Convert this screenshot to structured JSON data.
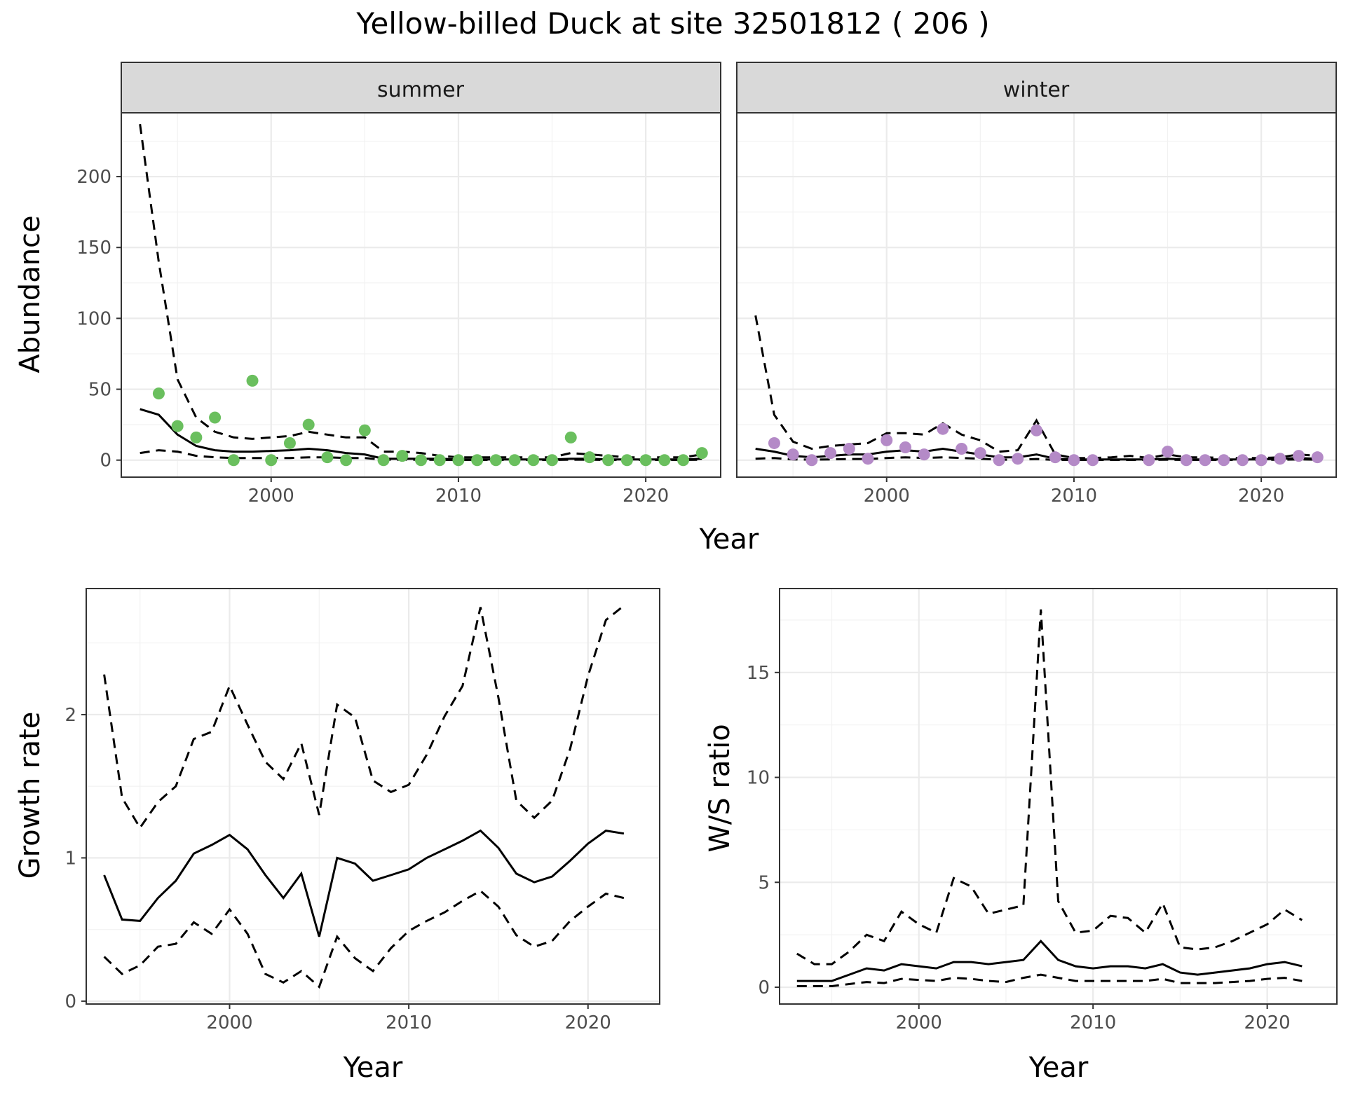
{
  "title": "Yellow-billed Duck at site 32501812 ( 206 )",
  "chart_data": [
    {
      "type": "scatter",
      "panel": "summer",
      "facet_label": "summer",
      "xlabel": "Year",
      "ylabel": "Abundance",
      "xlim": [
        1992,
        2024
      ],
      "ylim": [
        -12,
        245
      ],
      "xticks": [
        2000,
        2010,
        2020
      ],
      "yticks": [
        0,
        50,
        100,
        150,
        200
      ],
      "point_color": "#6abf5e",
      "points": {
        "x": [
          1994,
          1995,
          1996,
          1997,
          1998,
          1999,
          2000,
          2001,
          2002,
          2003,
          2004,
          2005,
          2006,
          2007,
          2008,
          2009,
          2010,
          2011,
          2012,
          2013,
          2014,
          2015,
          2016,
          2017,
          2018,
          2019,
          2020,
          2021,
          2022,
          2023
        ],
        "y": [
          47,
          24,
          16,
          30,
          0,
          56,
          0,
          12,
          25,
          2,
          0,
          21,
          0,
          3,
          0,
          0,
          0,
          0,
          0,
          0,
          0,
          0,
          16,
          2,
          0,
          0,
          0,
          0,
          0,
          5
        ]
      },
      "lines": [
        {
          "style": "solid",
          "x": [
            1993,
            1994,
            1995,
            1996,
            1997,
            1998,
            1999,
            2000,
            2001,
            2002,
            2003,
            2004,
            2005,
            2006,
            2007,
            2008,
            2009,
            2010,
            2011,
            2012,
            2013,
            2014,
            2015,
            2016,
            2017,
            2018,
            2019,
            2020,
            2021,
            2022,
            2023
          ],
          "y": [
            36,
            32,
            18,
            10,
            7,
            6,
            6,
            6.5,
            7,
            8,
            7,
            5,
            4,
            1,
            1,
            1,
            1,
            0.5,
            0.5,
            0.5,
            0.5,
            0.5,
            0.5,
            1,
            1,
            0.5,
            0.5,
            0.5,
            0.5,
            0.5,
            1
          ]
        },
        {
          "style": "dashed",
          "x": [
            1993,
            1994,
            1995,
            1996,
            1997,
            1998,
            1999,
            2000,
            2001,
            2002,
            2003,
            2004,
            2005,
            2006,
            2007,
            2008,
            2009,
            2010,
            2011,
            2012,
            2013,
            2014,
            2015,
            2016,
            2017,
            2018,
            2019,
            2020,
            2021,
            2022,
            2023
          ],
          "y": [
            237,
            140,
            57,
            30,
            20,
            16,
            15,
            16,
            17,
            20,
            18,
            16,
            16,
            6,
            6,
            5,
            3,
            2,
            2,
            2,
            2,
            2,
            2,
            5,
            4,
            3,
            2,
            2,
            2,
            2,
            4
          ]
        },
        {
          "style": "dashed",
          "x": [
            1993,
            1994,
            1995,
            1996,
            1997,
            1998,
            1999,
            2000,
            2001,
            2002,
            2003,
            2004,
            2005,
            2006,
            2007,
            2008,
            2009,
            2010,
            2011,
            2012,
            2013,
            2014,
            2015,
            2016,
            2017,
            2018,
            2019,
            2020,
            2021,
            2022,
            2023
          ],
          "y": [
            5,
            7,
            6,
            3,
            2,
            1.5,
            1.5,
            1.5,
            1.5,
            2,
            2,
            1.5,
            1.5,
            0.3,
            0.3,
            0.3,
            0.2,
            0.1,
            0.1,
            0.1,
            0.1,
            0.1,
            0.1,
            0.3,
            0.3,
            0.1,
            0.1,
            0.1,
            0.1,
            0.1,
            0.3
          ]
        }
      ]
    },
    {
      "type": "scatter",
      "panel": "winter",
      "facet_label": "winter",
      "xlabel": "Year",
      "ylabel": "Abundance",
      "xlim": [
        1992,
        2024
      ],
      "ylim": [
        -12,
        245
      ],
      "xticks": [
        2000,
        2010,
        2020
      ],
      "yticks": [
        0,
        50,
        100,
        150,
        200
      ],
      "point_color": "#b48ac7",
      "points": {
        "x": [
          1994,
          1995,
          1996,
          1997,
          1998,
          1999,
          2000,
          2001,
          2002,
          2003,
          2004,
          2005,
          2006,
          2007,
          2008,
          2009,
          2010,
          2011,
          2014,
          2015,
          2016,
          2017,
          2018,
          2019,
          2020,
          2021,
          2022,
          2023
        ],
        "y": [
          12,
          4,
          0,
          5,
          8,
          1,
          14,
          9,
          4,
          22,
          8,
          5,
          0,
          1,
          21,
          2,
          0,
          0,
          0,
          6,
          0,
          0,
          0,
          0,
          0,
          1,
          3,
          2
        ]
      },
      "lines": [
        {
          "style": "solid",
          "x": [
            1993,
            1994,
            1995,
            1996,
            1997,
            1998,
            1999,
            2000,
            2001,
            2002,
            2003,
            2004,
            2005,
            2006,
            2007,
            2008,
            2009,
            2010,
            2011,
            2012,
            2013,
            2014,
            2015,
            2016,
            2017,
            2018,
            2019,
            2020,
            2021,
            2022,
            2023
          ],
          "y": [
            8,
            6,
            3,
            2,
            3,
            4,
            4,
            6,
            7,
            6,
            8,
            6,
            4,
            2,
            2,
            4,
            1,
            0.5,
            0.5,
            0.5,
            0.5,
            0.5,
            1,
            0.5,
            0.5,
            0.5,
            0.5,
            0.5,
            1,
            1.5,
            1
          ]
        },
        {
          "style": "dashed",
          "x": [
            1993,
            1994,
            1995,
            1996,
            1997,
            1998,
            1999,
            2000,
            2001,
            2002,
            2003,
            2004,
            2005,
            2006,
            2007,
            2008,
            2009,
            2010,
            2011,
            2012,
            2013,
            2014,
            2015,
            2016,
            2017,
            2018,
            2019,
            2020,
            2021,
            2022,
            2023
          ],
          "y": [
            102,
            32,
            13,
            8,
            10,
            11,
            12,
            19,
            19,
            18,
            26,
            18,
            14,
            6,
            7,
            28,
            4,
            1.5,
            1.5,
            2,
            3,
            1.5,
            4,
            2,
            2,
            1.5,
            1.5,
            1.5,
            2,
            4,
            3
          ]
        },
        {
          "style": "dashed",
          "x": [
            1993,
            1994,
            1995,
            1996,
            1997,
            1998,
            1999,
            2000,
            2001,
            2002,
            2003,
            2004,
            2005,
            2006,
            2007,
            2008,
            2009,
            2010,
            2011,
            2012,
            2013,
            2014,
            2015,
            2016,
            2017,
            2018,
            2019,
            2020,
            2021,
            2022,
            2023
          ],
          "y": [
            1,
            1.5,
            0.5,
            0.3,
            0.5,
            0.8,
            0.8,
            1.5,
            2,
            1.5,
            2,
            1.5,
            1,
            0.3,
            0.3,
            0.8,
            0.1,
            0.1,
            0.1,
            0.1,
            0.1,
            0.1,
            0.3,
            0.1,
            0.1,
            0.1,
            0.1,
            0.1,
            0.3,
            0.5,
            0.3
          ]
        }
      ]
    },
    {
      "type": "line",
      "panel": "growth",
      "xlabel": "Year",
      "ylabel": "Growth rate",
      "xlim": [
        1992,
        2024
      ],
      "ylim": [
        -0.02,
        2.88
      ],
      "xticks": [
        2000,
        2010,
        2020
      ],
      "yticks": [
        0,
        1,
        2
      ],
      "lines": [
        {
          "style": "solid",
          "x": [
            1993,
            1994,
            1995,
            1996,
            1997,
            1998,
            1999,
            2000,
            2001,
            2002,
            2003,
            2004,
            2005,
            2006,
            2007,
            2008,
            2009,
            2010,
            2011,
            2012,
            2013,
            2014,
            2015,
            2016,
            2017,
            2018,
            2019,
            2020,
            2021,
            2022
          ],
          "y": [
            0.88,
            0.57,
            0.56,
            0.72,
            0.84,
            1.03,
            1.09,
            1.16,
            1.06,
            0.88,
            0.72,
            0.89,
            0.45,
            1.0,
            0.96,
            0.84,
            0.88,
            0.92,
            1.0,
            1.06,
            1.12,
            1.19,
            1.07,
            0.89,
            0.83,
            0.87,
            0.98,
            1.1,
            1.19,
            1.17
          ]
        },
        {
          "style": "dashed",
          "x": [
            1993,
            1994,
            1995,
            1996,
            1997,
            1998,
            1999,
            2000,
            2001,
            2002,
            2003,
            2004,
            2005,
            2006,
            2007,
            2008,
            2009,
            2010,
            2011,
            2012,
            2013,
            2014,
            2015,
            2016,
            2017,
            2018,
            2019,
            2020,
            2021,
            2022
          ],
          "y": [
            2.28,
            1.42,
            1.21,
            1.39,
            1.5,
            1.83,
            1.88,
            2.2,
            1.93,
            1.67,
            1.55,
            1.8,
            1.3,
            2.07,
            1.98,
            1.54,
            1.46,
            1.51,
            1.72,
            1.99,
            2.2,
            2.75,
            2.12,
            1.4,
            1.28,
            1.4,
            1.76,
            2.27,
            2.66,
            2.76
          ]
        },
        {
          "style": "dashed",
          "x": [
            1993,
            1994,
            1995,
            1996,
            1997,
            1998,
            1999,
            2000,
            2001,
            2002,
            2003,
            2004,
            2005,
            2006,
            2007,
            2008,
            2009,
            2010,
            2011,
            2012,
            2013,
            2014,
            2015,
            2016,
            2017,
            2018,
            2019,
            2020,
            2021,
            2022
          ],
          "y": [
            0.31,
            0.19,
            0.25,
            0.38,
            0.4,
            0.55,
            0.47,
            0.64,
            0.47,
            0.19,
            0.13,
            0.21,
            0.1,
            0.45,
            0.3,
            0.21,
            0.37,
            0.49,
            0.56,
            0.62,
            0.7,
            0.77,
            0.66,
            0.46,
            0.38,
            0.42,
            0.56,
            0.66,
            0.75,
            0.72
          ]
        }
      ]
    },
    {
      "type": "line",
      "panel": "ws-ratio",
      "xlabel": "Year",
      "ylabel": "W/S ratio",
      "xlim": [
        1992,
        2024
      ],
      "ylim": [
        -0.8,
        19
      ],
      "xticks": [
        2000,
        2010,
        2020
      ],
      "yticks": [
        0,
        5,
        10,
        15
      ],
      "lines": [
        {
          "style": "solid",
          "x": [
            1993,
            1994,
            1995,
            1996,
            1997,
            1998,
            1999,
            2000,
            2001,
            2002,
            2003,
            2004,
            2005,
            2006,
            2007,
            2008,
            2009,
            2010,
            2011,
            2012,
            2013,
            2014,
            2015,
            2016,
            2017,
            2018,
            2019,
            2020,
            2021,
            2022
          ],
          "y": [
            0.3,
            0.3,
            0.3,
            0.6,
            0.9,
            0.8,
            1.1,
            1.0,
            0.9,
            1.2,
            1.2,
            1.1,
            1.2,
            1.3,
            2.2,
            1.3,
            1.0,
            0.9,
            1.0,
            1.0,
            0.9,
            1.1,
            0.7,
            0.6,
            0.7,
            0.8,
            0.9,
            1.1,
            1.2,
            1.0
          ]
        },
        {
          "style": "dashed",
          "x": [
            1993,
            1994,
            1995,
            1996,
            1997,
            1998,
            1999,
            2000,
            2001,
            2002,
            2003,
            2004,
            2005,
            2006,
            2007,
            2008,
            2009,
            2010,
            2011,
            2012,
            2013,
            2014,
            2015,
            2016,
            2017,
            2018,
            2019,
            2020,
            2021,
            2022
          ],
          "y": [
            1.6,
            1.1,
            1.1,
            1.7,
            2.5,
            2.2,
            3.6,
            3.0,
            2.6,
            5.2,
            4.8,
            3.5,
            3.7,
            3.9,
            18.0,
            4.1,
            2.6,
            2.7,
            3.4,
            3.3,
            2.6,
            4.0,
            1.9,
            1.8,
            1.9,
            2.2,
            2.6,
            3.0,
            3.7,
            3.2
          ]
        },
        {
          "style": "dashed",
          "x": [
            1993,
            1994,
            1995,
            1996,
            1997,
            1998,
            1999,
            2000,
            2001,
            2002,
            2003,
            2004,
            2005,
            2006,
            2007,
            2008,
            2009,
            2010,
            2011,
            2012,
            2013,
            2014,
            2015,
            2016,
            2017,
            2018,
            2019,
            2020,
            2021,
            2022
          ],
          "y": [
            0.05,
            0.05,
            0.05,
            0.15,
            0.25,
            0.2,
            0.4,
            0.35,
            0.3,
            0.45,
            0.4,
            0.3,
            0.25,
            0.45,
            0.6,
            0.45,
            0.3,
            0.3,
            0.3,
            0.3,
            0.3,
            0.4,
            0.2,
            0.2,
            0.2,
            0.25,
            0.3,
            0.4,
            0.45,
            0.3
          ]
        }
      ]
    }
  ]
}
